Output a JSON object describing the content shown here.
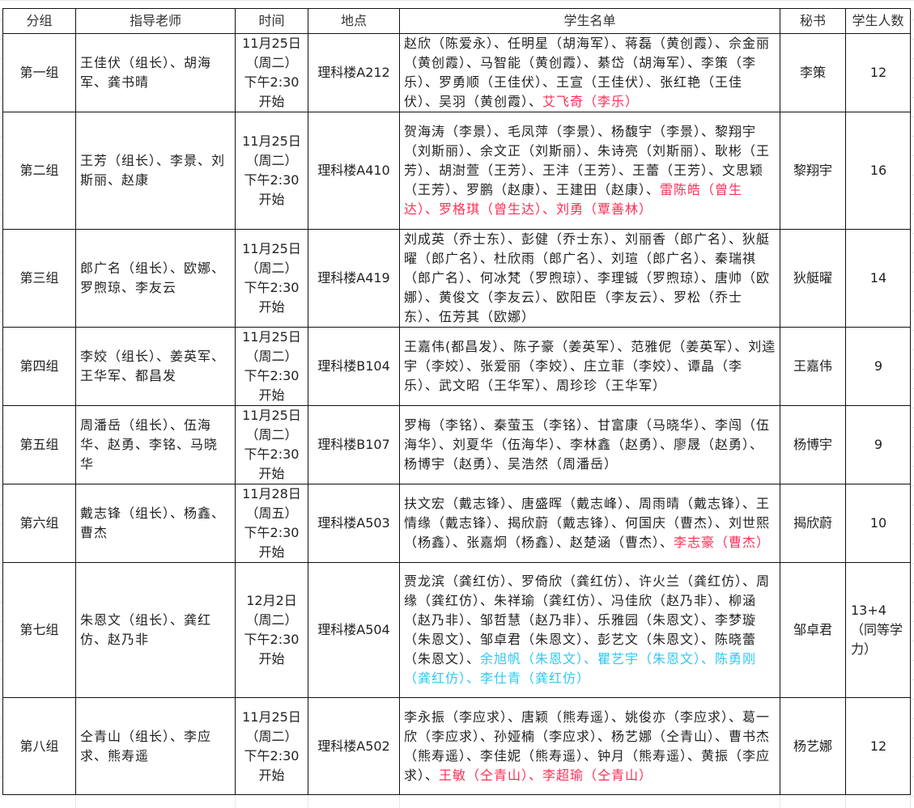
{
  "colors": {
    "red": "#ff2e55",
    "cyan": "#2ec8f5",
    "text": "#222222"
  },
  "headers": [
    "分组",
    "指导老师",
    "时间",
    "地点",
    "学生名单",
    "秘书",
    "学生人数"
  ],
  "rows": [
    {
      "group": "第一组",
      "teachers": "王佳伏（组长）、胡海军、龚书晴",
      "time": [
        "11月25日",
        "（周二）",
        "下午2:30",
        "开始"
      ],
      "place": "理科楼A212",
      "students": [
        {
          "text": "赵欣（陈爱永）、任明星（胡海军）、蒋磊（黄创霞）、佘金丽（黄创霞）、马智能（黄创霞）、綦岱（胡海军）、李策（李乐）、罗勇顺（王佳伏）、王宣（王佳伏）、张红艳（王佳伏）、吴羽（黄创霞）、",
          "tone": "normal"
        },
        {
          "text": "艾飞奇（李乐）",
          "tone": "red"
        }
      ],
      "secretary": "李策",
      "count": "12"
    },
    {
      "group": "第二组",
      "teachers": "王芳（组长）、李景、刘斯丽、赵康",
      "time": [
        "11月25日",
        "（周二）",
        "下午2:30",
        "开始"
      ],
      "place": "理科楼A410",
      "students": [
        {
          "text": "贺海涛（李景）、毛凤萍（李景）、杨馥宇（李景）、黎翔宇（刘斯丽）、余文正（刘斯丽）、朱诗亮（刘斯丽）、耿彬（王芳）、胡澍萱（王芳）、王沣（王芳）、王蕾（王芳）、文思颖（王芳）、罗鹏（赵康）、王建田（赵康）、",
          "tone": "normal"
        },
        {
          "text": "雷陈皓（曾生达）、罗格琪（曾生达）、刘勇（覃善林）",
          "tone": "red"
        }
      ],
      "secretary": "黎翔宇",
      "count": "16"
    },
    {
      "group": "第三组",
      "teachers": "郎广名（组长）、欧娜、罗煦琼、李友云",
      "time": [
        "11月25日",
        "（周二）",
        "下午2:30",
        "开始"
      ],
      "place": "理科楼A419",
      "students": [
        {
          "text": "刘成英（乔士东）、彭健（乔士东）、刘丽香（郎广名）、狄艇曜（郎广名）、杜欣雨（郎广名）、刘瑄（郎广名）、秦瑞祺（郎广名）、何冰梵（罗煦琼）、李理铖（罗煦琼）、唐帅（欧娜）、黄俊文（李友云）、欧阳臣（李友云）、罗松（乔士东）、伍芳其（欧娜）",
          "tone": "normal"
        }
      ],
      "secretary": "狄艇曜",
      "count": "14"
    },
    {
      "group": "第四组",
      "teachers": "李姣（组长）、姜英军、王华军、都昌发",
      "time": [
        "11月25日",
        "（周二）",
        "下午2:30",
        "开始"
      ],
      "place": "理科楼B104",
      "students": [
        {
          "text": "王嘉伟(都昌发）、陈子豪（姜英军）、范雅伲（姜英军）、刘逵宇（李姣）、张爱丽（李姣）、庄立菲（李姣）、谭晶（李乐）、武文昭（王华军）、周珍珍（王华军）",
          "tone": "normal"
        }
      ],
      "secretary": "王嘉伟",
      "count": "9"
    },
    {
      "group": "第五组",
      "teachers": "周潘岳（组长）、伍海华、赵勇、李铭、马晓华",
      "time": [
        "11月25日",
        "（周二）",
        "下午2:30",
        "开始"
      ],
      "place": "理科楼B107",
      "students": [
        {
          "text": "罗梅（李铭）、秦萤玉（李铭）、甘富康（马晓华）、李闯（伍海华）、刘夏华（伍海华）、李林鑫（赵勇）、廖晟（赵勇）、杨博宇（赵勇）、吴浩然（周潘岳）",
          "tone": "normal"
        }
      ],
      "secretary": "杨博宇",
      "count": "9"
    },
    {
      "group": "第六组",
      "teachers": "戴志锋（组长）、杨鑫、曹杰",
      "time": [
        "11月28日",
        "（周五）",
        "下午2:30",
        "开始"
      ],
      "place": "理科楼A503",
      "students": [
        {
          "text": "扶文宏（戴志锋）、唐盛晖（戴志峰）、周雨晴（戴志锋）、王情缘（戴志锋）、揭欣蔚（戴志锋）、何国庆（曹杰）、刘世熙（杨鑫）、张嘉炯（杨鑫）、赵楚涵（曹杰）、",
          "tone": "normal"
        },
        {
          "text": "李志豪（曹杰）",
          "tone": "red"
        }
      ],
      "secretary": "揭欣蔚",
      "count": "10"
    },
    {
      "group": "第七组",
      "teachers": "朱恩文（组长）、龚红仿、赵乃非",
      "time": [
        "12月2日",
        "（周二）",
        "下午2:30",
        "开始"
      ],
      "place": "理科楼A504",
      "students": [
        {
          "text": "贾龙滨（龚红仿）、罗倚欣（龚红仿）、许火兰（龚红仿）、周缘（龚红仿）、朱祥瑜（龚红仿）、冯佳欣（赵乃非）、柳涵（赵乃非）、邹哲慧（赵乃非）、乐雅园（朱恩文）、李梦璇（朱恩文）、邹卓君（朱恩文）、彭艺文（朱恩文）、陈晓蕾（朱恩文）、",
          "tone": "normal"
        },
        {
          "text": "余旭帆（朱恩文）、瞿艺宇（朱恩文）、陈勇刚（龚红仿）、李仕青（龚红仿）",
          "tone": "cyan"
        }
      ],
      "secretary": "邹卓君",
      "count": "13+4（同等学力）"
    },
    {
      "group": "第八组",
      "teachers": "仝青山（组长）、李应求、熊寿遥",
      "time": [
        "11月25日",
        "（周二）",
        "下午2:30",
        "开始"
      ],
      "place": "理科楼A502",
      "students": [
        {
          "text": "李永振（李应求）、唐颖（熊寿遥）、姚俊亦（李应求）、葛一欣（李应求）、孙娅楠（李应求）、杨艺娜（仝青山）、曹书杰（熊寿遥）、李佳妮（熊寿遥）、钟月（熊寿遥）、黄振（李应求）、",
          "tone": "normal"
        },
        {
          "text": "王敏（仝青山）、李超瑜（仝青山）",
          "tone": "red"
        }
      ],
      "secretary": "杨艺娜",
      "count": "12"
    }
  ]
}
